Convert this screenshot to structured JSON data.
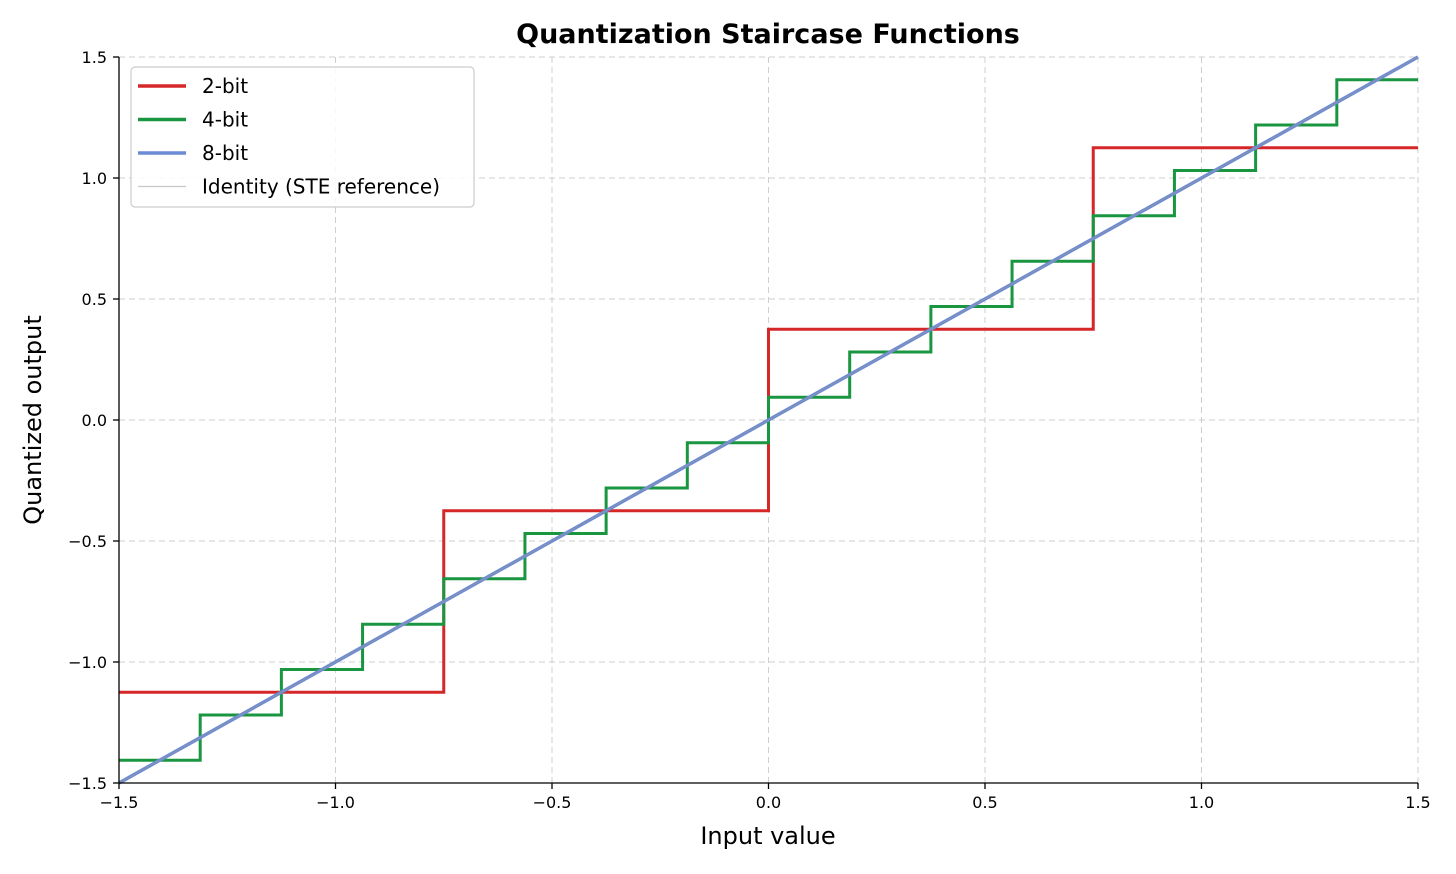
{
  "chart_data": {
    "type": "line",
    "title": "Quantization Staircase Functions",
    "xlabel": "Input value",
    "ylabel": "Quantized output",
    "xlim": [
      -1.5,
      1.5
    ],
    "ylim": [
      -1.5,
      1.5
    ],
    "xticks": [
      -1.5,
      -1.0,
      -0.5,
      0.0,
      0.5,
      1.0,
      1.5
    ],
    "xtick_labels": [
      "−1.5",
      "−1.0",
      "−0.5",
      "0.0",
      "0.5",
      "1.0",
      "1.5"
    ],
    "yticks": [
      -1.5,
      -1.0,
      -0.5,
      0.0,
      0.5,
      1.0,
      1.5
    ],
    "ytick_labels": [
      "−1.5",
      "−1.0",
      "−0.5",
      "0.0",
      "0.5",
      "1.0",
      "1.5"
    ],
    "grid": true,
    "legend_position": "top-left",
    "series": [
      {
        "name": "2-bit",
        "color": "#d62728",
        "style": "step",
        "x": [
          -1.5,
          -0.75,
          -0.75,
          0.0,
          0.0,
          0.75,
          0.75,
          1.5
        ],
        "y": [
          -1.125,
          -1.125,
          -0.375,
          -0.375,
          0.375,
          0.375,
          1.125,
          1.125
        ]
      },
      {
        "name": "4-bit",
        "color": "#1a9641",
        "style": "step",
        "x": [
          -1.5,
          -1.3125,
          -1.3125,
          -1.125,
          -1.125,
          -0.9375,
          -0.9375,
          -0.75,
          -0.75,
          -0.5625,
          -0.5625,
          -0.375,
          -0.375,
          -0.1875,
          -0.1875,
          0.0,
          0.0,
          0.1875,
          0.1875,
          0.375,
          0.375,
          0.5625,
          0.5625,
          0.75,
          0.75,
          0.9375,
          0.9375,
          1.125,
          1.125,
          1.3125,
          1.3125,
          1.5
        ],
        "y": [
          -1.406,
          -1.406,
          -1.219,
          -1.219,
          -1.031,
          -1.031,
          -0.844,
          -0.844,
          -0.656,
          -0.656,
          -0.469,
          -0.469,
          -0.281,
          -0.281,
          -0.094,
          -0.094,
          0.094,
          0.094,
          0.281,
          0.281,
          0.469,
          0.469,
          0.656,
          0.656,
          0.844,
          0.844,
          1.031,
          1.031,
          1.219,
          1.219,
          1.406,
          1.406
        ]
      },
      {
        "name": "8-bit",
        "color": "#6b8bd6",
        "style": "line",
        "x": [
          -1.5,
          1.5
        ],
        "y": [
          -1.5,
          1.5
        ]
      },
      {
        "name": "Identity (STE reference)",
        "color": "#999999",
        "style": "thin",
        "x": [
          -1.5,
          1.5
        ],
        "y": [
          -1.5,
          1.5
        ]
      }
    ]
  }
}
